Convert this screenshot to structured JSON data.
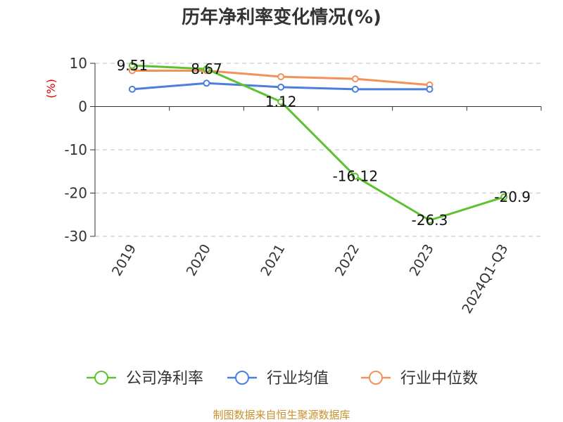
{
  "chart_data": {
    "type": "line",
    "title": "历年净利率变化情况(%)",
    "ylabel": "(%)",
    "xlabel": "",
    "categories": [
      "2019",
      "2020",
      "2021",
      "2022",
      "2023",
      "2024Q1-Q3"
    ],
    "ylim": [
      -30,
      10
    ],
    "yticks": [
      10,
      0,
      -10,
      -20,
      -30
    ],
    "grid": true,
    "legend_position": "bottom",
    "series": [
      {
        "name": "公司净利率",
        "color": "#5cc22f",
        "values": [
          9.51,
          8.67,
          1.12,
          -16.12,
          -26.3,
          -20.9
        ],
        "labels": [
          "9.51",
          "8.67",
          "1.12",
          "-16.12",
          "-26.3",
          "-20.9"
        ]
      },
      {
        "name": "行业均值",
        "color": "#4a7fdc",
        "values": [
          4.0,
          5.4,
          4.5,
          4.0,
          4.0,
          null
        ]
      },
      {
        "name": "行业中位数",
        "color": "#f4905a",
        "values": [
          8.3,
          8.3,
          6.9,
          6.4,
          5.0,
          null
        ]
      }
    ]
  },
  "source": "制图数据来自恒生聚源数据库"
}
